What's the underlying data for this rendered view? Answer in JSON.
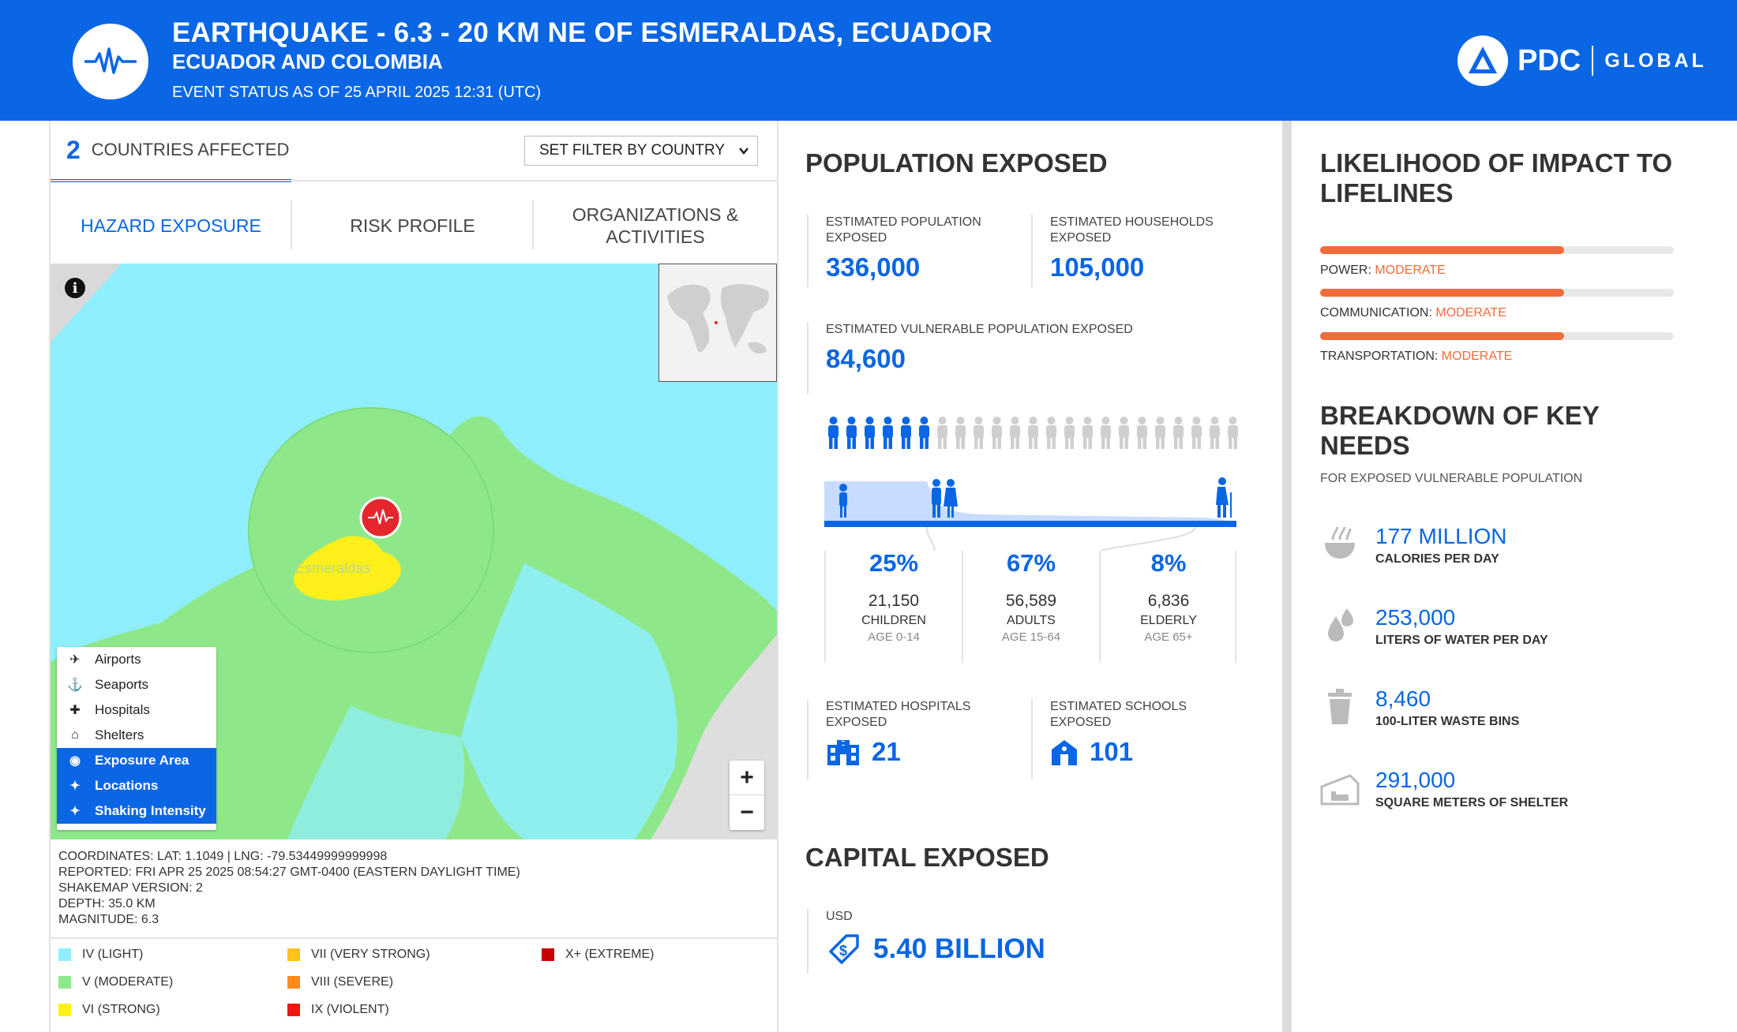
{
  "header": {
    "title": "EARTHQUAKE - 6.3 - 20 KM NE OF ESMERALDAS, ECUADOR",
    "subtitle": "ECUADOR AND COLOMBIA",
    "status": "EVENT STATUS AS OF 25 APRIL 2025 12:31 (UTC)",
    "brand": "PDC",
    "brand_suffix": "GLOBAL"
  },
  "countries": {
    "count": "2",
    "label": "COUNTRIES AFFECTED"
  },
  "filter": {
    "label": "SET FILTER BY COUNTRY"
  },
  "tabs": [
    {
      "label": "HAZARD EXPOSURE"
    },
    {
      "label": "RISK PROFILE"
    },
    {
      "label": "ORGANIZATIONS & ACTIVITIES"
    }
  ],
  "map": {
    "place_label": "Esmeraldas",
    "layers": [
      {
        "label": "Airports",
        "icon": "airplane-icon"
      },
      {
        "label": "Seaports",
        "icon": "anchor-icon"
      },
      {
        "label": "Hospitals",
        "icon": "hospital-icon"
      },
      {
        "label": "Shelters",
        "icon": "shelter-icon"
      },
      {
        "label": "Exposure Area",
        "icon": "exposure-icon"
      },
      {
        "label": "Locations",
        "icon": "location-icon"
      },
      {
        "label": "Shaking Intensity",
        "icon": "shaking-icon"
      }
    ],
    "zoom_in": "+",
    "zoom_out": "−"
  },
  "meta": {
    "coordinates": "COORDINATES: LAT: 1.1049 | LNG: -79.53449999999998",
    "reported": "REPORTED: FRI APR 25 2025 08:54:27 GMT-0400 (EASTERN DAYLIGHT TIME)",
    "shakemap": "SHAKEMAP VERSION: 2",
    "depth": "DEPTH: 35.0 KM",
    "magnitude": "MAGNITUDE: 6.3"
  },
  "legend": [
    {
      "label": "IV (LIGHT)",
      "color": "#8fefff"
    },
    {
      "label": "V (MODERATE)",
      "color": "#8ee88a"
    },
    {
      "label": "VI (STRONG)",
      "color": "#ffef1a"
    },
    {
      "label": "VII (VERY STRONG)",
      "color": "#ffc21a"
    },
    {
      "label": "VIII (SEVERE)",
      "color": "#ff8a1a"
    },
    {
      "label": "IX (VIOLENT)",
      "color": "#f01616"
    },
    {
      "label": "X+ (EXTREME)",
      "color": "#c80000"
    }
  ],
  "population": {
    "title": "POPULATION EXPOSED",
    "est_pop_label": "ESTIMATED POPULATION EXPOSED",
    "est_pop": "336,000",
    "est_hh_label": "ESTIMATED HOUSEHOLDS EXPOSED",
    "est_hh": "105,000",
    "vuln_label": "ESTIMATED VULNERABLE POPULATION EXPOSED",
    "vuln": "84,600",
    "vulnerable_share": 0.25,
    "groups": [
      {
        "pct": "25%",
        "num": "21,150",
        "name": "CHILDREN",
        "age": "AGE 0-14"
      },
      {
        "pct": "67%",
        "num": "56,589",
        "name": "ADULTS",
        "age": "AGE 15-64"
      },
      {
        "pct": "8%",
        "num": "6,836",
        "name": "ELDERLY",
        "age": "AGE 65+"
      }
    ],
    "hospitals_label": "ESTIMATED HOSPITALS EXPOSED",
    "hospitals": "21",
    "schools_label": "ESTIMATED SCHOOLS EXPOSED",
    "schools": "101"
  },
  "capital": {
    "title": "CAPITAL EXPOSED",
    "currency": "USD",
    "value": "5.40 BILLION"
  },
  "lifelines": {
    "title": "LIKELIHOOD OF IMPACT TO LIFELINES",
    "items": [
      {
        "name": "POWER:",
        "level": "MODERATE",
        "fill": 0.69
      },
      {
        "name": "COMMUNICATION:",
        "level": "MODERATE",
        "fill": 0.69
      },
      {
        "name": "TRANSPORTATION:",
        "level": "MODERATE",
        "fill": 0.69
      }
    ]
  },
  "needs": {
    "title": "BREAKDOWN OF KEY NEEDS",
    "subtitle": "FOR EXPOSED VULNERABLE POPULATION",
    "items": [
      {
        "value": "177 MILLION",
        "label": "CALORIES PER DAY",
        "icon": "food-icon"
      },
      {
        "value": "253,000",
        "label": "LITERS OF WATER PER DAY",
        "icon": "water-icon"
      },
      {
        "value": "8,460",
        "label": "100-LITER WASTE BINS",
        "icon": "waste-bin-icon"
      },
      {
        "value": "291,000",
        "label": "SQUARE METERS OF SHELTER",
        "icon": "shelter-icon"
      }
    ]
  }
}
